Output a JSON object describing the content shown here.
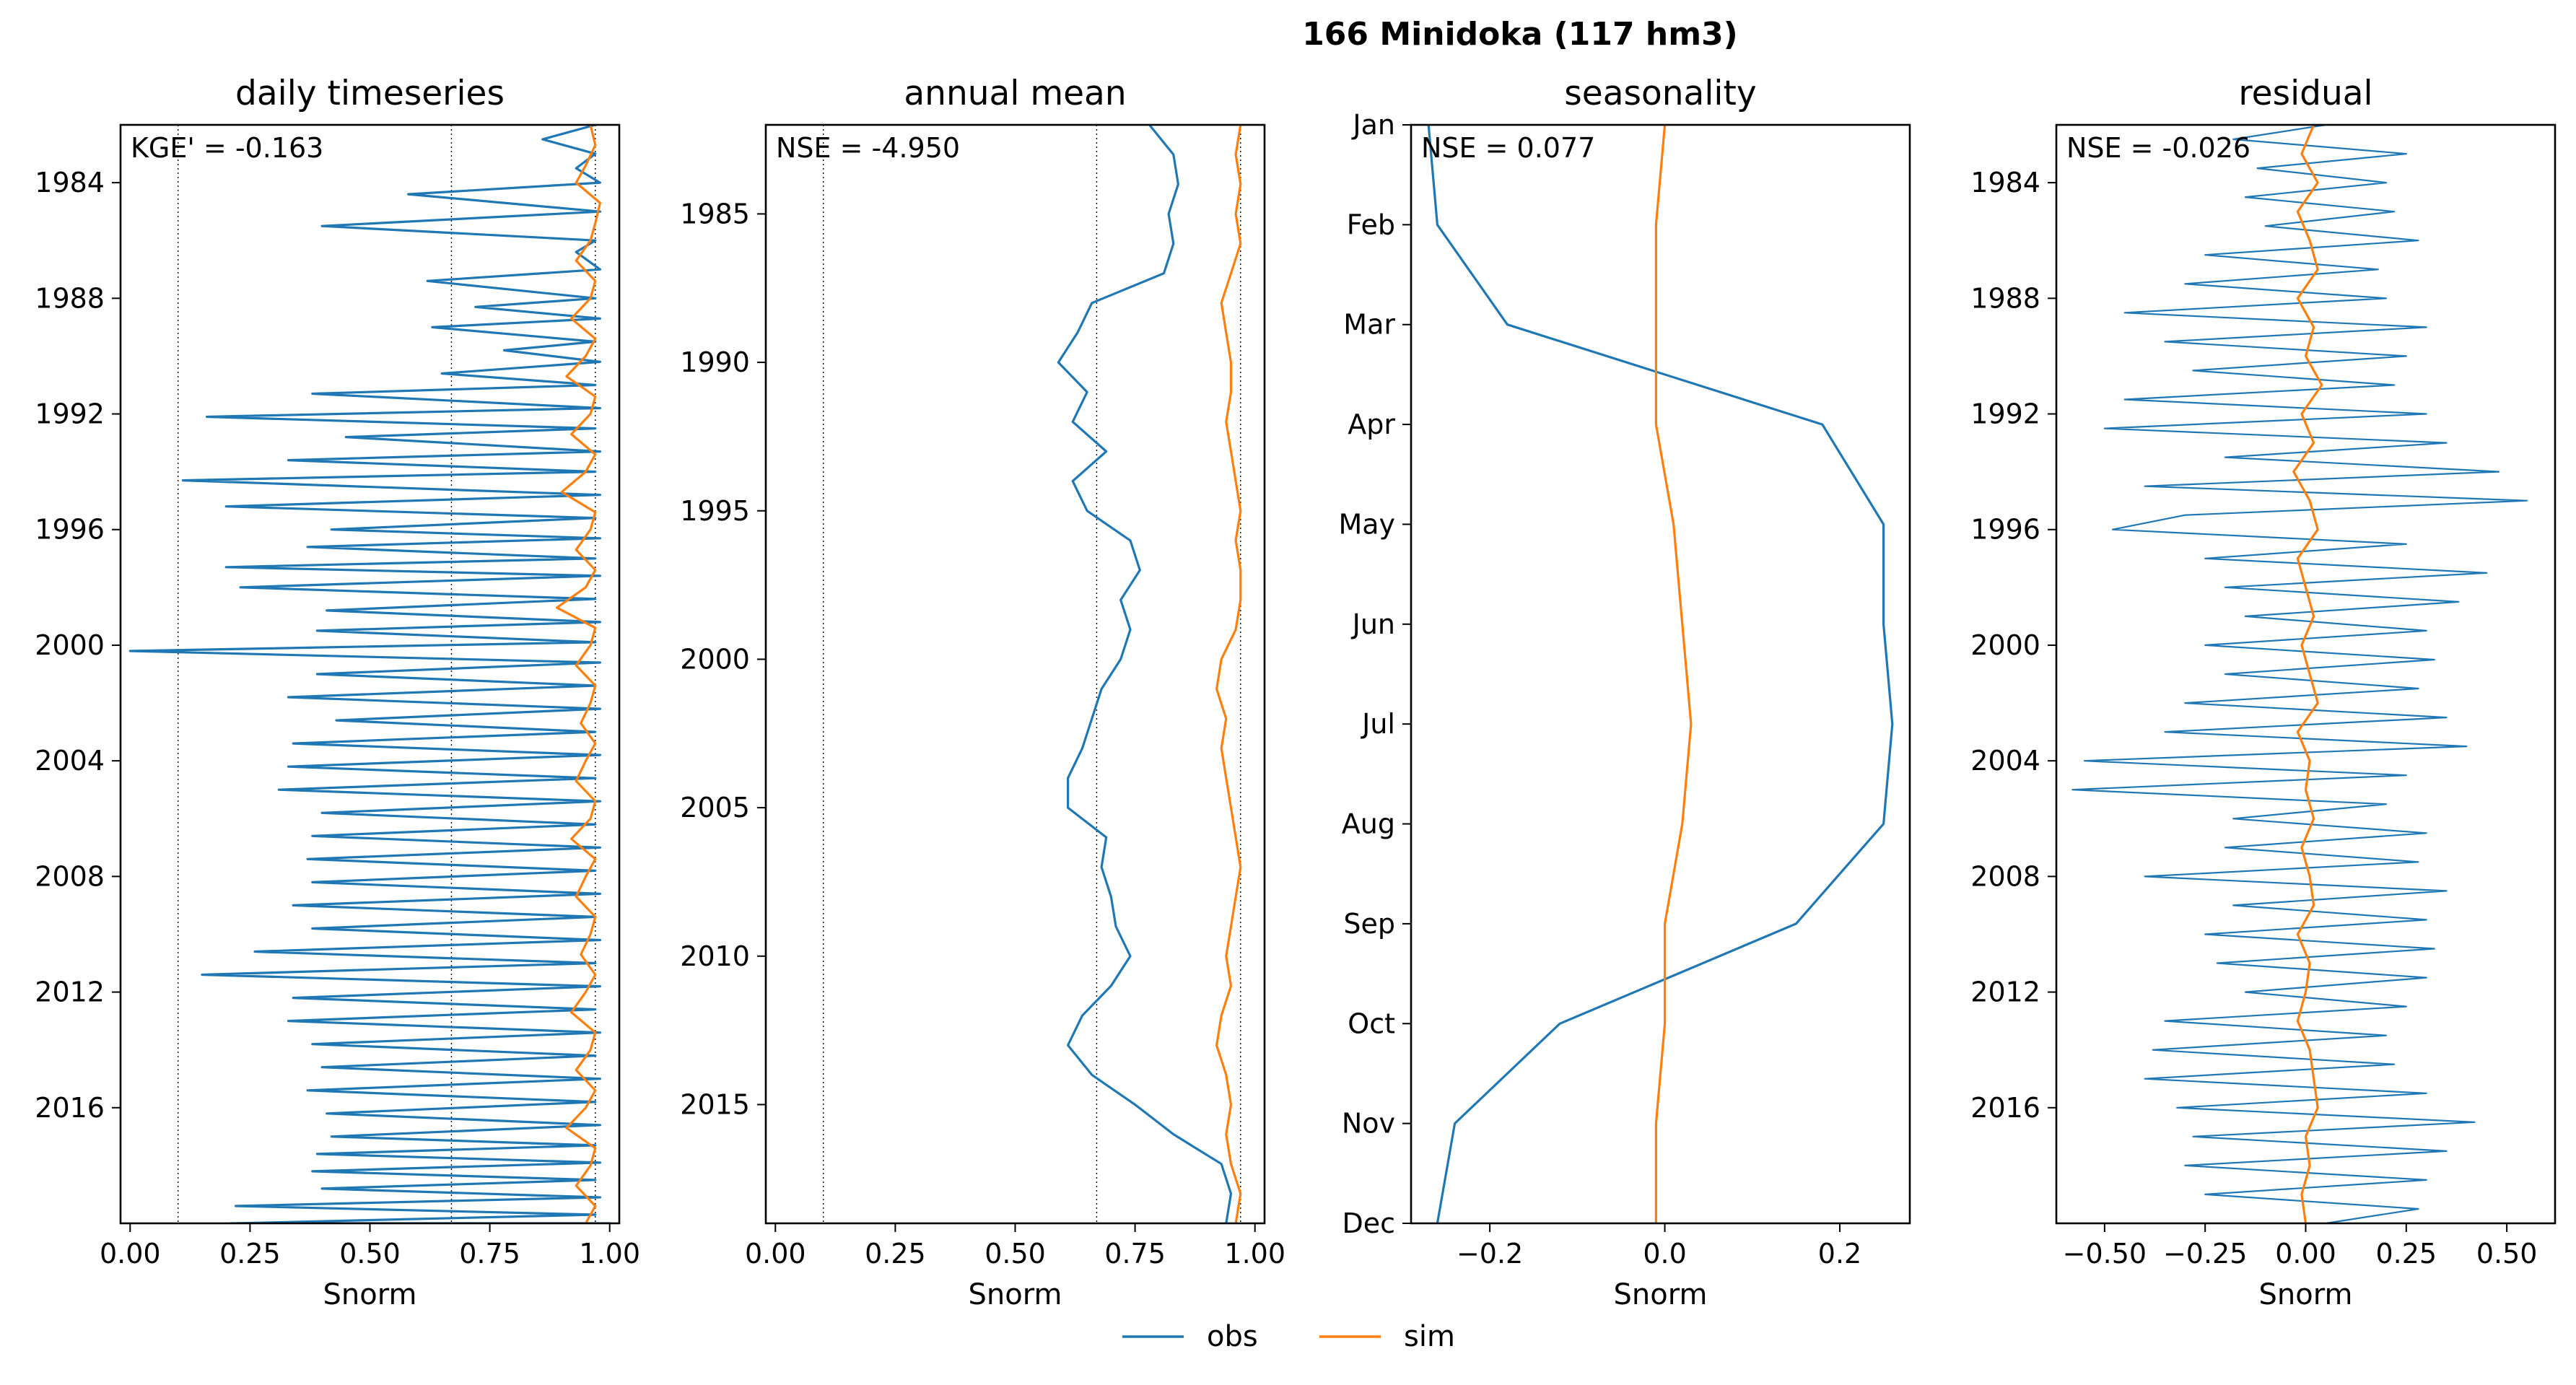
{
  "figure": {
    "title": "166  Minidoka (117 hm3)"
  },
  "colors": {
    "obs": "#1f77b4",
    "sim": "#ff7f0e",
    "axis": "#000000"
  },
  "legend": {
    "placement": "bottom-center",
    "obs_label": "obs",
    "sim_label": "sim"
  },
  "panels": [
    {
      "title": "daily timeseries",
      "annotation": "KGE' = -0.163",
      "xlabel": "Snorm",
      "xticks": [
        "0.00",
        "0.25",
        "0.50",
        "0.75",
        "1.00"
      ],
      "yticks": [
        "1984",
        "1988",
        "1992",
        "1996",
        "2000",
        "2004",
        "2008",
        "2012",
        "2016"
      ]
    },
    {
      "title": "annual mean",
      "annotation": "NSE = -4.950",
      "xlabel": "Snorm",
      "xticks": [
        "0.00",
        "0.25",
        "0.50",
        "0.75",
        "1.00"
      ],
      "yticks": [
        "1985",
        "1990",
        "1995",
        "2000",
        "2005",
        "2010",
        "2015"
      ]
    },
    {
      "title": "seasonality",
      "annotation": "NSE = 0.077",
      "xlabel": "Snorm",
      "xticks": [
        "−0.2",
        "0.0",
        "0.2"
      ],
      "yticks": [
        "Jan",
        "Feb",
        "Mar",
        "Apr",
        "May",
        "Jun",
        "Jul",
        "Aug",
        "Sep",
        "Oct",
        "Nov",
        "Dec"
      ]
    },
    {
      "title": "residual",
      "annotation": "NSE = -0.026",
      "xlabel": "Snorm",
      "xticks": [
        "−0.50",
        "−0.25",
        "0.00",
        "0.25",
        "0.50"
      ],
      "yticks": [
        "1984",
        "1988",
        "1992",
        "1996",
        "2000",
        "2004",
        "2008",
        "2012",
        "2016"
      ]
    }
  ],
  "chart_data": [
    {
      "type": "line",
      "title": "daily timeseries",
      "xlabel": "Snorm",
      "xlim": [
        -0.02,
        1.02
      ],
      "ylim": [
        2020.0,
        1982.0
      ],
      "orientation": "vertical-time",
      "ref_lines_x": [
        0.1,
        0.67,
        0.97
      ],
      "series": [
        {
          "name": "obs",
          "x": [
            0.97,
            0.86,
            0.97,
            0.93,
            0.98,
            0.58,
            0.98,
            0.4,
            0.97,
            0.93,
            0.98,
            0.62,
            0.97,
            0.72,
            0.98,
            0.63,
            0.97,
            0.78,
            0.98,
            0.65,
            0.97,
            0.38,
            0.98,
            0.16,
            0.97,
            0.45,
            0.98,
            0.33,
            0.97,
            0.11,
            0.98,
            0.2,
            0.97,
            0.42,
            0.98,
            0.37,
            0.97,
            0.2,
            0.98,
            0.23,
            0.97,
            0.41,
            0.98,
            0.39,
            0.97,
            0.0,
            0.98,
            0.39,
            0.97,
            0.33,
            0.98,
            0.43,
            0.97,
            0.34,
            0.98,
            0.33,
            0.97,
            0.31,
            0.98,
            0.4,
            0.97,
            0.38,
            0.98,
            0.37,
            0.97,
            0.38,
            0.98,
            0.34,
            0.97,
            0.38,
            0.98,
            0.26,
            0.97,
            0.15,
            0.98,
            0.34,
            0.97,
            0.33,
            0.98,
            0.38,
            0.97,
            0.4,
            0.98,
            0.37,
            0.97,
            0.41,
            0.98,
            0.42,
            0.97,
            0.39,
            0.98,
            0.38,
            0.97,
            0.4,
            0.98,
            0.22,
            0.97,
            0.22,
            0.98,
            0.21,
            0.97,
            0.9,
            0.98,
            0.87,
            0.97,
            0.88,
            1.0,
            0.86,
            0.98,
            0.88,
            0.97
          ],
          "y": [
            1982.0,
            1982.5,
            1983.0,
            1983.5,
            1984.0,
            1984.4,
            1985.0,
            1985.5,
            1986.0,
            1986.4,
            1987.0,
            1987.4,
            1988.0,
            1988.3,
            1988.7,
            1989.0,
            1989.5,
            1989.8,
            1990.2,
            1990.6,
            1991.0,
            1991.3,
            1991.8,
            1992.1,
            1992.5,
            1992.8,
            1993.3,
            1993.6,
            1994.0,
            1994.3,
            1994.8,
            1995.2,
            1995.6,
            1996.0,
            1996.3,
            1996.6,
            1997.0,
            1997.3,
            1997.6,
            1998.0,
            1998.4,
            1998.8,
            1999.2,
            1999.5,
            1999.9,
            2000.2,
            2000.6,
            2001.0,
            2001.4,
            2001.8,
            2002.2,
            2002.6,
            2003.0,
            2003.4,
            2003.8,
            2004.2,
            2004.6,
            2005.0,
            2005.4,
            2005.8,
            2006.2,
            2006.6,
            2007.0,
            2007.4,
            2007.8,
            2008.2,
            2008.6,
            2009.0,
            2009.4,
            2009.8,
            2010.2,
            2010.6,
            2011.0,
            2011.4,
            2011.8,
            2012.2,
            2012.6,
            2013.0,
            2013.4,
            2013.8,
            2014.2,
            2014.6,
            2015.0,
            2015.4,
            2015.8,
            2016.2,
            2016.6,
            2017.0,
            2017.3,
            2017.6,
            2017.9,
            2018.2,
            2018.5,
            2018.8,
            2019.1,
            2019.4,
            2019.7,
            2020.0,
            2020.0,
            2020.0,
            2020.0,
            2020.0,
            2020.0,
            2020.0,
            2020.0,
            2020.0,
            2020.0,
            2020.0,
            2020.0,
            2020.0,
            2020.0
          ]
        },
        {
          "name": "sim",
          "x": [
            0.96,
            0.97,
            0.95,
            0.93,
            0.98,
            0.97,
            0.96,
            0.93,
            0.97,
            0.96,
            0.92,
            0.97,
            0.95,
            0.91,
            0.97,
            0.96,
            0.92,
            0.97,
            0.95,
            0.9,
            0.97,
            0.96,
            0.93,
            0.97,
            0.95,
            0.89,
            0.97,
            0.96,
            0.93,
            0.97,
            0.96,
            0.94,
            0.97,
            0.95,
            0.93,
            0.97,
            0.96,
            0.92,
            0.97,
            0.95,
            0.93,
            0.97,
            0.96,
            0.94,
            0.97,
            0.95,
            0.92,
            0.97,
            0.96,
            0.93,
            0.97,
            0.95,
            0.91,
            0.97,
            0.96,
            0.93,
            0.97,
            0.95
          ],
          "y": [
            1982.0,
            1982.7,
            1983.4,
            1984.0,
            1984.7,
            1985.4,
            1986.0,
            1986.7,
            1987.4,
            1988.0,
            1988.7,
            1989.4,
            1990.0,
            1990.7,
            1991.4,
            1992.0,
            1992.7,
            1993.4,
            1994.0,
            1994.7,
            1995.4,
            1996.0,
            1996.7,
            1997.4,
            1998.0,
            1998.7,
            1999.4,
            2000.0,
            2000.7,
            2001.4,
            2002.0,
            2002.7,
            2003.4,
            2004.0,
            2004.7,
            2005.4,
            2006.0,
            2006.7,
            2007.4,
            2008.0,
            2008.7,
            2009.4,
            2010.0,
            2010.7,
            2011.4,
            2012.0,
            2012.7,
            2013.4,
            2014.0,
            2014.7,
            2015.4,
            2016.0,
            2016.7,
            2017.4,
            2018.0,
            2018.7,
            2019.4,
            2020.0
          ]
        }
      ]
    },
    {
      "type": "line",
      "title": "annual mean",
      "xlabel": "Snorm",
      "xlim": [
        -0.02,
        1.02
      ],
      "ylim": [
        2019.0,
        1982.0
      ],
      "orientation": "vertical-time",
      "ref_lines_x": [
        0.1,
        0.67,
        0.97
      ],
      "series": [
        {
          "name": "obs",
          "y": [
            1982,
            1983,
            1984,
            1985,
            1986,
            1987,
            1988,
            1989,
            1990,
            1991,
            1992,
            1993,
            1994,
            1995,
            1996,
            1997,
            1998,
            1999,
            2000,
            2001,
            2002,
            2003,
            2004,
            2005,
            2006,
            2007,
            2008,
            2009,
            2010,
            2011,
            2012,
            2013,
            2014,
            2015,
            2016,
            2017,
            2018,
            2019
          ],
          "x": [
            0.78,
            0.83,
            0.84,
            0.82,
            0.83,
            0.81,
            0.66,
            0.63,
            0.59,
            0.65,
            0.62,
            0.69,
            0.62,
            0.65,
            0.74,
            0.76,
            0.72,
            0.74,
            0.72,
            0.68,
            0.66,
            0.64,
            0.61,
            0.61,
            0.69,
            0.68,
            0.7,
            0.71,
            0.74,
            0.7,
            0.64,
            0.61,
            0.66,
            0.75,
            0.83,
            0.93,
            0.95,
            0.94
          ]
        },
        {
          "name": "sim",
          "y": [
            1982,
            1983,
            1984,
            1985,
            1986,
            1987,
            1988,
            1989,
            1990,
            1991,
            1992,
            1993,
            1994,
            1995,
            1996,
            1997,
            1998,
            1999,
            2000,
            2001,
            2002,
            2003,
            2004,
            2005,
            2006,
            2007,
            2008,
            2009,
            2010,
            2011,
            2012,
            2013,
            2014,
            2015,
            2016,
            2017,
            2018,
            2019
          ],
          "x": [
            0.97,
            0.96,
            0.97,
            0.96,
            0.97,
            0.95,
            0.93,
            0.94,
            0.95,
            0.95,
            0.94,
            0.95,
            0.96,
            0.97,
            0.96,
            0.97,
            0.97,
            0.96,
            0.93,
            0.92,
            0.94,
            0.93,
            0.94,
            0.95,
            0.96,
            0.97,
            0.96,
            0.95,
            0.94,
            0.95,
            0.93,
            0.92,
            0.94,
            0.95,
            0.94,
            0.95,
            0.97,
            0.96
          ]
        }
      ]
    },
    {
      "type": "line",
      "title": "seasonality",
      "xlabel": "Snorm",
      "xlim": [
        -0.29,
        0.28
      ],
      "ylim": [
        "Dec",
        "Jan"
      ],
      "orientation": "vertical-time",
      "categories": [
        "Jan",
        "Feb",
        "Mar",
        "Apr",
        "May",
        "Jun",
        "Jul",
        "Aug",
        "Sep",
        "Oct",
        "Nov",
        "Dec"
      ],
      "series": [
        {
          "name": "obs",
          "values": [
            -0.27,
            -0.26,
            -0.18,
            0.18,
            0.25,
            0.25,
            0.26,
            0.25,
            0.15,
            -0.12,
            -0.24,
            -0.26
          ]
        },
        {
          "name": "sim",
          "values": [
            0.0,
            -0.01,
            -0.01,
            -0.01,
            0.01,
            0.02,
            0.03,
            0.02,
            0.0,
            0.0,
            -0.01,
            -0.01
          ]
        }
      ]
    },
    {
      "type": "line",
      "title": "residual",
      "xlabel": "Snorm",
      "xlim": [
        -0.62,
        0.62
      ],
      "ylim": [
        2020.0,
        1982.0
      ],
      "orientation": "vertical-time",
      "series": [
        {
          "name": "obs",
          "y": [
            1982.0,
            1982.5,
            1983.0,
            1983.5,
            1984.0,
            1984.5,
            1985.0,
            1985.5,
            1986.0,
            1986.5,
            1987.0,
            1987.5,
            1988.0,
            1988.5,
            1989.0,
            1989.5,
            1990.0,
            1990.5,
            1991.0,
            1991.5,
            1992.0,
            1992.5,
            1993.0,
            1993.5,
            1994.0,
            1994.5,
            1995.0,
            1995.5,
            1996.0,
            1996.5,
            1997.0,
            1997.5,
            1998.0,
            1998.5,
            1999.0,
            1999.5,
            2000.0,
            2000.5,
            2001.0,
            2001.5,
            2002.0,
            2002.5,
            2003.0,
            2003.5,
            2004.0,
            2004.5,
            2005.0,
            2005.5,
            2006.0,
            2006.5,
            2007.0,
            2007.5,
            2008.0,
            2008.5,
            2009.0,
            2009.5,
            2010.0,
            2010.5,
            2011.0,
            2011.5,
            2012.0,
            2012.5,
            2013.0,
            2013.5,
            2014.0,
            2014.5,
            2015.0,
            2015.5,
            2016.0,
            2016.5,
            2017.0,
            2017.5,
            2018.0,
            2018.5,
            2019.0,
            2019.5,
            2020.0
          ],
          "x": [
            0.05,
            -0.18,
            0.25,
            -0.12,
            0.2,
            -0.15,
            0.22,
            -0.1,
            0.28,
            -0.25,
            0.18,
            -0.3,
            0.2,
            -0.45,
            0.3,
            -0.35,
            0.25,
            -0.28,
            0.22,
            -0.45,
            0.3,
            -0.5,
            0.35,
            -0.2,
            0.48,
            -0.4,
            0.55,
            -0.3,
            -0.48,
            0.25,
            -0.25,
            0.45,
            -0.2,
            0.38,
            -0.15,
            0.3,
            -0.25,
            0.32,
            -0.2,
            0.28,
            -0.3,
            0.35,
            -0.35,
            0.4,
            -0.55,
            0.25,
            -0.58,
            0.2,
            -0.18,
            0.3,
            -0.2,
            0.28,
            -0.4,
            0.35,
            -0.18,
            0.3,
            -0.25,
            0.32,
            -0.22,
            0.3,
            -0.15,
            0.25,
            -0.35,
            0.2,
            -0.38,
            0.22,
            -0.4,
            0.3,
            -0.32,
            0.42,
            -0.28,
            0.35,
            -0.3,
            0.3,
            -0.25,
            0.28,
            0.05
          ]
        },
        {
          "name": "sim",
          "y": [
            1982,
            1983,
            1984,
            1985,
            1986,
            1987,
            1988,
            1989,
            1990,
            1991,
            1992,
            1993,
            1994,
            1995,
            1996,
            1997,
            1998,
            1999,
            2000,
            2001,
            2002,
            2003,
            2004,
            2005,
            2006,
            2007,
            2008,
            2009,
            2010,
            2011,
            2012,
            2013,
            2014,
            2015,
            2016,
            2017,
            2018,
            2019,
            2020
          ],
          "x": [
            0.02,
            -0.01,
            0.03,
            -0.02,
            0.01,
            0.03,
            -0.02,
            0.02,
            0.0,
            0.04,
            -0.01,
            0.02,
            -0.03,
            0.01,
            0.03,
            -0.02,
            0.0,
            0.02,
            -0.01,
            0.01,
            0.03,
            -0.02,
            0.01,
            0.0,
            0.02,
            -0.01,
            0.01,
            0.02,
            -0.02,
            0.01,
            0.0,
            -0.02,
            0.01,
            0.02,
            0.03,
            0.0,
            0.01,
            -0.01,
            0.0
          ]
        }
      ]
    }
  ]
}
